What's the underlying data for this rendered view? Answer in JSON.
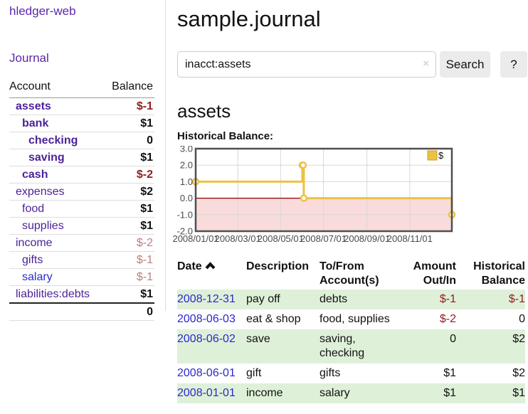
{
  "colors": {
    "purple": "#5b27ad",
    "acct-purple": "#4c2399",
    "blue": "#2a2ace",
    "maroon": "#8f1d1d",
    "rose": "#bf7e7e",
    "green": "#dff0d8",
    "btn-bg": "#ebebeb",
    "lavender": "#d9cfe8",
    "gold": "#edc240"
  },
  "sidebar": {
    "brand": "hledger-web",
    "nav": {
      "journal": "Journal"
    },
    "accounts_table": {
      "headers": {
        "account": "Account",
        "balance": "Balance"
      },
      "rows": [
        {
          "label": "assets",
          "indent": 1,
          "bold": true,
          "link_color": "purple",
          "balance": "$-1",
          "balance_style": "negstrong"
        },
        {
          "label": "bank",
          "indent": 2,
          "bold": true,
          "link_color": "purple",
          "balance": "$1",
          "balance_style": "pos"
        },
        {
          "label": "checking",
          "indent": 3,
          "bold": true,
          "link_color": "purple",
          "balance": "0",
          "balance_style": "pos"
        },
        {
          "label": "saving",
          "indent": 3,
          "bold": true,
          "link_color": "purple",
          "balance": "$1",
          "balance_style": "pos"
        },
        {
          "label": "cash",
          "indent": 2,
          "bold": true,
          "link_color": "purple",
          "balance": "$-2",
          "balance_style": "negstrong"
        },
        {
          "label": "expenses",
          "indent": 1,
          "bold": false,
          "link_color": "purple",
          "balance": "$2",
          "balance_style": "pos"
        },
        {
          "label": "food",
          "indent": 2,
          "bold": false,
          "link_color": "purple",
          "balance": "$1",
          "balance_style": "pos"
        },
        {
          "label": "supplies",
          "indent": 2,
          "bold": false,
          "link_color": "purple",
          "balance": "$1",
          "balance_style": "pos"
        },
        {
          "label": "income",
          "indent": 1,
          "bold": false,
          "link_color": "purple",
          "balance": "$-2",
          "balance_style": "negsoft"
        },
        {
          "label": "gifts",
          "indent": 2,
          "bold": false,
          "link_color": "purple",
          "balance": "$-1",
          "balance_style": "negsoft"
        },
        {
          "label": "salary",
          "indent": 2,
          "bold": false,
          "link_color": "blue",
          "balance": "$-1",
          "balance_style": "negsoft"
        },
        {
          "label": "liabilities:debts",
          "indent": 1,
          "bold": false,
          "link_color": "purple",
          "balance": "$1",
          "balance_style": "pos"
        }
      ],
      "total": "0"
    }
  },
  "header": {
    "title": "sample.journal"
  },
  "search": {
    "value": "inacct:assets",
    "clear_icon": "×",
    "button": "Search",
    "help_button": "?"
  },
  "account_page": {
    "heading": "assets",
    "chart_label": "Historical Balance:"
  },
  "chart_data": {
    "type": "line",
    "title": "Historical Balance",
    "step": true,
    "legend_position": "top-right",
    "grid": true,
    "xlim": [
      "2008-01-01",
      "2008-12-31"
    ],
    "ylim": [
      -2,
      3
    ],
    "yticks": [
      3,
      2,
      1,
      0,
      -1,
      -2
    ],
    "ytick_labels": [
      "3.0",
      "2.0",
      "1.0",
      "0.0",
      "-1.0",
      "-2.0"
    ],
    "xticks": [
      "2008-01-01",
      "2008-03-01",
      "2008-05-01",
      "2008-07-01",
      "2008-09-01",
      "2008-11-01"
    ],
    "xtick_labels": [
      "2008/01/01",
      "2008/03/01",
      "2008/05/01",
      "2008/07/01",
      "2008/09/01",
      "2008/11/01"
    ],
    "negative_fill": "#f9dbdb",
    "zero_line_color": "#8b0000",
    "series": [
      {
        "name": "$",
        "color": "#edc240",
        "points": [
          {
            "x": "2008-01-01",
            "y": 1
          },
          {
            "x": "2008-06-01",
            "y": 2
          },
          {
            "x": "2008-06-02",
            "y": 2
          },
          {
            "x": "2008-06-03",
            "y": 0
          },
          {
            "x": "2008-12-31",
            "y": -1
          }
        ]
      }
    ]
  },
  "register": {
    "columns": [
      {
        "label": "Date",
        "sort": "asc"
      },
      {
        "label": "Description"
      },
      {
        "label": "To/From Account(s)"
      },
      {
        "label": "Amount Out/In"
      },
      {
        "label": "Historical Balance"
      }
    ],
    "rows": [
      {
        "date": "2008-12-31",
        "description": "pay off",
        "accounts": "debts",
        "amount": "$-1",
        "amount_negative": true,
        "balance": "$-1",
        "balance_negative": true,
        "shaded": true
      },
      {
        "date": "2008-06-03",
        "description": "eat & shop",
        "accounts": "food, supplies",
        "amount": "$-2",
        "amount_negative": true,
        "balance": "0",
        "balance_negative": false,
        "shaded": false
      },
      {
        "date": "2008-06-02",
        "description": "save",
        "accounts": "saving, checking",
        "amount": "0",
        "amount_negative": false,
        "balance": "$2",
        "balance_negative": false,
        "shaded": true
      },
      {
        "date": "2008-06-01",
        "description": "gift",
        "accounts": "gifts",
        "amount": "$1",
        "amount_negative": false,
        "balance": "$2",
        "balance_negative": false,
        "shaded": false
      },
      {
        "date": "2008-01-01",
        "description": "income",
        "accounts": "salary",
        "amount": "$1",
        "amount_negative": false,
        "balance": "$1",
        "balance_negative": false,
        "shaded": true
      }
    ]
  }
}
